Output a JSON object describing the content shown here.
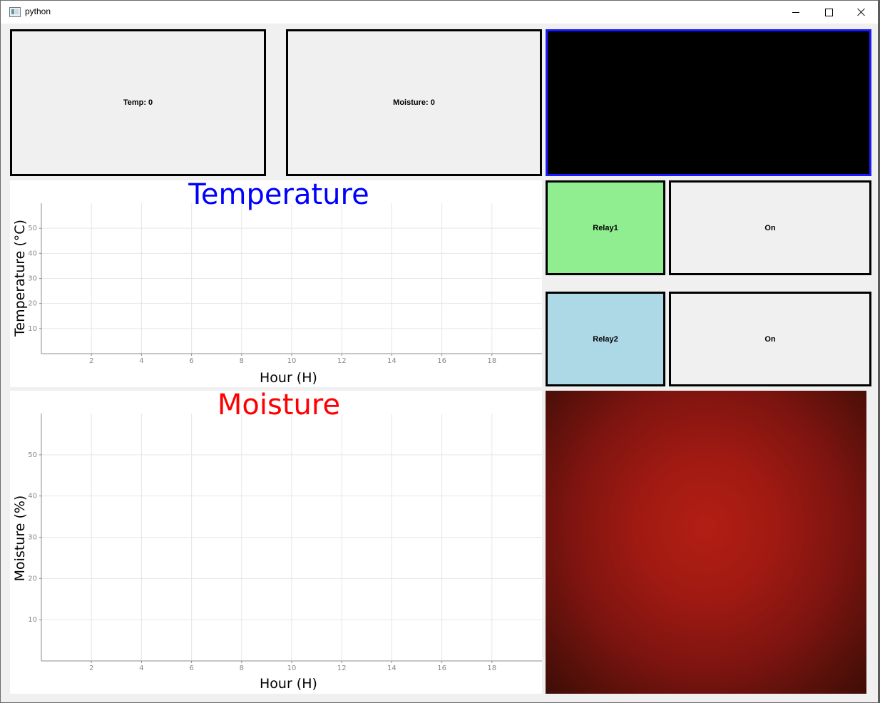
{
  "window": {
    "title": "python",
    "icon": "python-app-icon",
    "controls": [
      "minimize-icon",
      "maximize-icon",
      "close-icon"
    ]
  },
  "readouts": {
    "temp": "Temp: 0",
    "moisture": "Moisture: 0"
  },
  "relays": [
    {
      "label": "Relay1",
      "state": "On",
      "color": "#90ee90"
    },
    {
      "label": "Relay2",
      "state": "On",
      "color": "#add8e6"
    }
  ],
  "colors": {
    "video_border": "#1a1aff",
    "temperature_title": "#0000ff",
    "moisture_title": "#ff0000"
  },
  "chart_data": [
    {
      "type": "line",
      "title": "Temperature",
      "xlabel": "Hour (H)",
      "ylabel": "Temperature (°C)",
      "xlim": [
        0,
        20
      ],
      "ylim": [
        0,
        60
      ],
      "xticks": [
        2,
        4,
        6,
        8,
        10,
        12,
        14,
        16,
        18
      ],
      "yticks": [
        10,
        20,
        30,
        40,
        50
      ],
      "grid": true,
      "series": []
    },
    {
      "type": "line",
      "title": "Moisture",
      "xlabel": "Hour (H)",
      "ylabel": "Moisture (%)",
      "xlim": [
        0,
        20
      ],
      "ylim": [
        0,
        60
      ],
      "xticks": [
        2,
        4,
        6,
        8,
        10,
        12,
        14,
        16,
        18
      ],
      "yticks": [
        10,
        20,
        30,
        40,
        50
      ],
      "grid": true,
      "series": []
    }
  ]
}
